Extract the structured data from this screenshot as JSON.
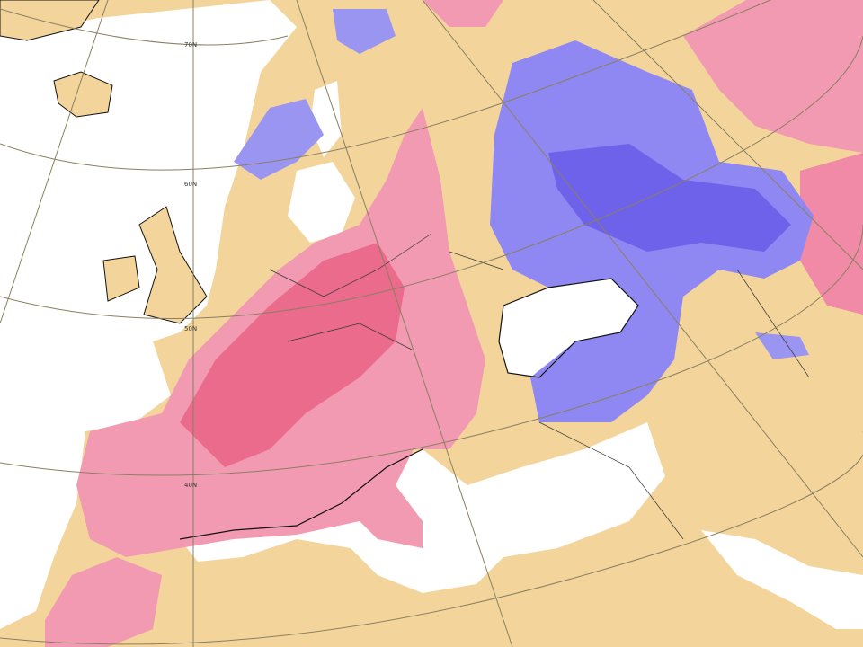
{
  "latitude_labels": [
    "70N",
    "60N",
    "50N",
    "40N"
  ]
}
